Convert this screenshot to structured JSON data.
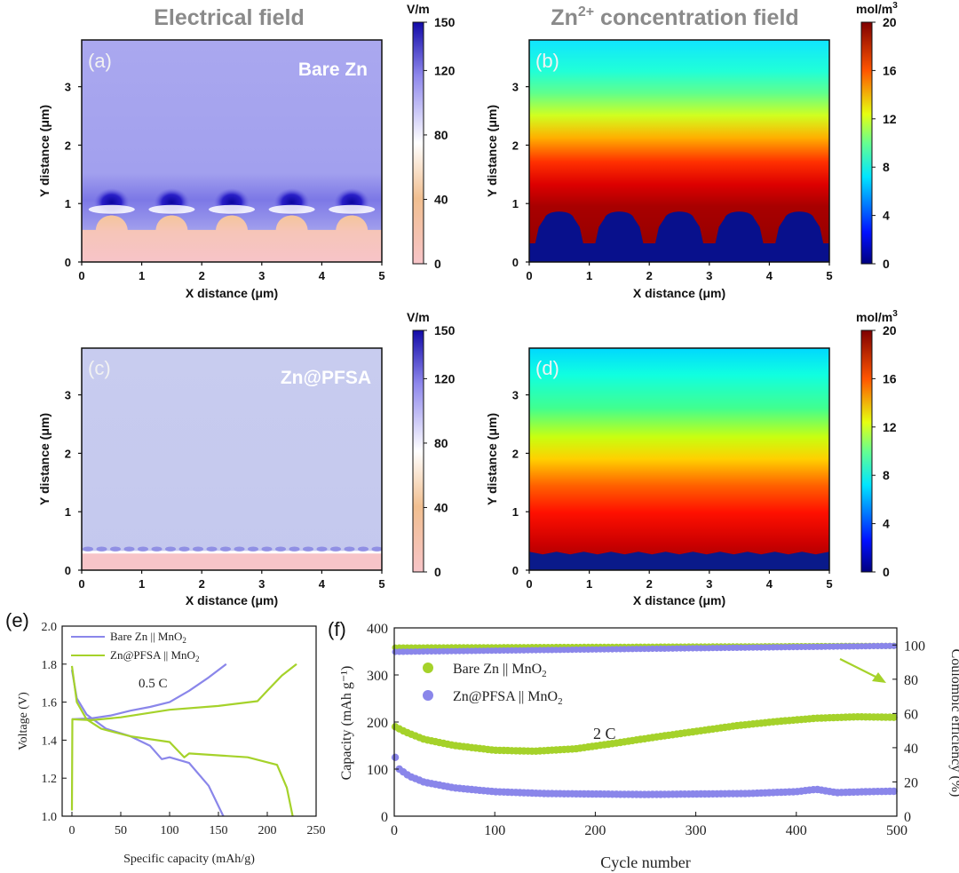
{
  "headers": {
    "electrical": "Electrical field",
    "concentration_prefix": "Zn",
    "concentration_sup": "2+",
    "concentration_suffix": " concentration field"
  },
  "colors": {
    "field_top": "#a8a6ee",
    "field_low": "#c9cdef",
    "field_hot": "#1a12b8",
    "deposit": "#f7c4c8",
    "deposit_edge": "#f3c39a",
    "jet_top": "#10e6ff",
    "jet_deposit": "#08108c",
    "green": "#a5d22a",
    "purple": "#8a86ea"
  },
  "chart_data": [
    {
      "panel": "a",
      "type": "heatmap",
      "label": "(a)",
      "annotation": "Bare Zn",
      "xlabel": "X distance (μm)",
      "ylabel": "Y distance (μm)",
      "xlim": [
        0,
        5
      ],
      "ylim": [
        0,
        3.8
      ],
      "xticks": [
        "0",
        "1",
        "2",
        "3",
        "4",
        "5"
      ],
      "yticks": [
        "0",
        "1",
        "2",
        "3"
      ],
      "colorbar": {
        "unit": "V/m",
        "min": 0,
        "max": 150,
        "ticks": [
          "0",
          "40",
          "80",
          "120",
          "150"
        ]
      },
      "bumps_x": [
        0.5,
        1.5,
        2.5,
        3.5,
        4.5
      ],
      "deposit_height": 0.9
    },
    {
      "panel": "b",
      "type": "heatmap",
      "label": "(b)",
      "annotation": "",
      "xlabel": "X distance (μm)",
      "ylabel": "Y distance (μm)",
      "xlim": [
        0,
        5
      ],
      "ylim": [
        0,
        3.8
      ],
      "xticks": [
        "0",
        "1",
        "2",
        "3",
        "4",
        "5"
      ],
      "yticks": [
        "0",
        "1",
        "2",
        "3"
      ],
      "colorbar": {
        "unit_base": "mol/m",
        "unit_sup": "3",
        "min": 0,
        "max": 20,
        "ticks": [
          "0",
          "4",
          "8",
          "12",
          "16",
          "20"
        ]
      },
      "bumps_x": [
        0.5,
        1.5,
        2.5,
        3.5,
        4.5
      ],
      "deposit_height": 0.9
    },
    {
      "panel": "c",
      "type": "heatmap",
      "label": "(c)",
      "annotation": "Zn@PFSA",
      "xlabel": "X distance (μm)",
      "ylabel": "Y distance (μm)",
      "xlim": [
        0,
        5
      ],
      "ylim": [
        0,
        3.8
      ],
      "xticks": [
        "0",
        "1",
        "2",
        "3",
        "4",
        "5"
      ],
      "yticks": [
        "0",
        "1",
        "2",
        "3"
      ],
      "colorbar": {
        "unit": "V/m",
        "min": 0,
        "max": 150,
        "ticks": [
          "0",
          "40",
          "80",
          "120",
          "150"
        ]
      },
      "deposit_height": 0.3
    },
    {
      "panel": "d",
      "type": "heatmap",
      "label": "(d)",
      "annotation": "",
      "xlabel": "X distance (μm)",
      "ylabel": "Y distance (μm)",
      "xlim": [
        0,
        5
      ],
      "ylim": [
        0,
        3.8
      ],
      "xticks": [
        "0",
        "1",
        "2",
        "3",
        "4",
        "5"
      ],
      "yticks": [
        "0",
        "1",
        "2",
        "3"
      ],
      "colorbar": {
        "unit_base": "mol/m",
        "unit_sup": "3",
        "min": 0,
        "max": 20,
        "ticks": [
          "0",
          "4",
          "8",
          "12",
          "16",
          "20"
        ]
      },
      "deposit_height": 0.3
    },
    {
      "panel": "e",
      "type": "line",
      "label": "(e)",
      "xlabel": "Specific capacity (mAh/g)",
      "ylabel": "Voltage (V)",
      "xlim": [
        -10,
        250
      ],
      "ylim": [
        1.0,
        2.0
      ],
      "xticks": [
        0,
        50,
        100,
        150,
        200,
        250
      ],
      "yticks": [
        1.0,
        1.2,
        1.4,
        1.6,
        1.8,
        2.0
      ],
      "annotation": "0.5 C",
      "series": [
        {
          "name": "Bare Zn || MnO2",
          "legend_base": "Bare Zn || MnO",
          "legend_sub": "2",
          "color": "#8a86ea",
          "charge": [
            [
              0,
              1.51
            ],
            [
              20,
              1.515
            ],
            [
              40,
              1.53
            ],
            [
              60,
              1.555
            ],
            [
              80,
              1.575
            ],
            [
              100,
              1.6
            ],
            [
              120,
              1.66
            ],
            [
              140,
              1.73
            ],
            [
              158,
              1.8
            ]
          ],
          "discharge": [
            [
              0,
              1.77
            ],
            [
              5,
              1.62
            ],
            [
              15,
              1.535
            ],
            [
              35,
              1.46
            ],
            [
              60,
              1.42
            ],
            [
              80,
              1.37
            ],
            [
              92,
              1.3
            ],
            [
              100,
              1.31
            ],
            [
              120,
              1.28
            ],
            [
              140,
              1.16
            ],
            [
              155,
              1.0
            ]
          ]
        },
        {
          "name": "Zn@PFSA || MnO2",
          "legend_base": "Zn@PFSA || MnO",
          "legend_sub": "2",
          "color": "#a5d22a",
          "charge": [
            [
              0,
              1.03
            ],
            [
              0.5,
              1.51
            ],
            [
              20,
              1.505
            ],
            [
              50,
              1.52
            ],
            [
              100,
              1.56
            ],
            [
              150,
              1.58
            ],
            [
              190,
              1.605
            ],
            [
              200,
              1.66
            ],
            [
              215,
              1.74
            ],
            [
              230,
              1.8
            ]
          ],
          "discharge": [
            [
              0,
              1.79
            ],
            [
              5,
              1.6
            ],
            [
              15,
              1.51
            ],
            [
              30,
              1.46
            ],
            [
              60,
              1.42
            ],
            [
              100,
              1.39
            ],
            [
              115,
              1.31
            ],
            [
              120,
              1.33
            ],
            [
              180,
              1.31
            ],
            [
              210,
              1.27
            ],
            [
              220,
              1.15
            ],
            [
              226,
              1.0
            ]
          ]
        }
      ]
    },
    {
      "panel": "f",
      "type": "scatter",
      "label": "(f)",
      "xlabel": "Cycle number",
      "ylabel": "Capacity (mAh g⁻¹)",
      "y2label": "Coulombic efficiency (%)",
      "xlim": [
        0,
        500
      ],
      "ylim": [
        0,
        400
      ],
      "y2lim": [
        0,
        110
      ],
      "xticks": [
        0,
        100,
        200,
        300,
        400,
        500
      ],
      "yticks": [
        0,
        100,
        200,
        300,
        400
      ],
      "y2ticks": [
        0,
        20,
        40,
        60,
        80,
        100
      ],
      "annotation": "2 C",
      "series": [
        {
          "name": "Bare Zn || MnO2",
          "legend_base": "Bare Zn || MnO",
          "legend_sub": "2",
          "color": "#a5d22a",
          "capacity": [
            [
              1,
              190
            ],
            [
              10,
              180
            ],
            [
              30,
              163
            ],
            [
              60,
              150
            ],
            [
              100,
              140
            ],
            [
              140,
              138
            ],
            [
              180,
              143
            ],
            [
              220,
              155
            ],
            [
              260,
              168
            ],
            [
              300,
              180
            ],
            [
              340,
              192
            ],
            [
              380,
              201
            ],
            [
              420,
              208
            ],
            [
              460,
              211
            ],
            [
              500,
              210
            ]
          ],
          "efficiency": [
            [
              1,
              98.5
            ],
            [
              500,
              99.5
            ]
          ]
        },
        {
          "name": "Zn@PFSA || MnO2",
          "legend_base": "Zn@PFSA || MnO",
          "legend_sub": "2",
          "color": "#8a86ea",
          "capacity": [
            [
              1,
              125
            ],
            [
              5,
              100
            ],
            [
              15,
              85
            ],
            [
              30,
              72
            ],
            [
              60,
              60
            ],
            [
              100,
              52
            ],
            [
              150,
              48
            ],
            [
              200,
              47
            ],
            [
              250,
              46
            ],
            [
              300,
              47
            ],
            [
              350,
              48
            ],
            [
              400,
              52
            ],
            [
              420,
              57
            ],
            [
              440,
              50
            ],
            [
              470,
              52
            ],
            [
              500,
              53
            ]
          ],
          "efficiency": [
            [
              1,
              96
            ],
            [
              500,
              99.5
            ]
          ]
        }
      ]
    }
  ]
}
